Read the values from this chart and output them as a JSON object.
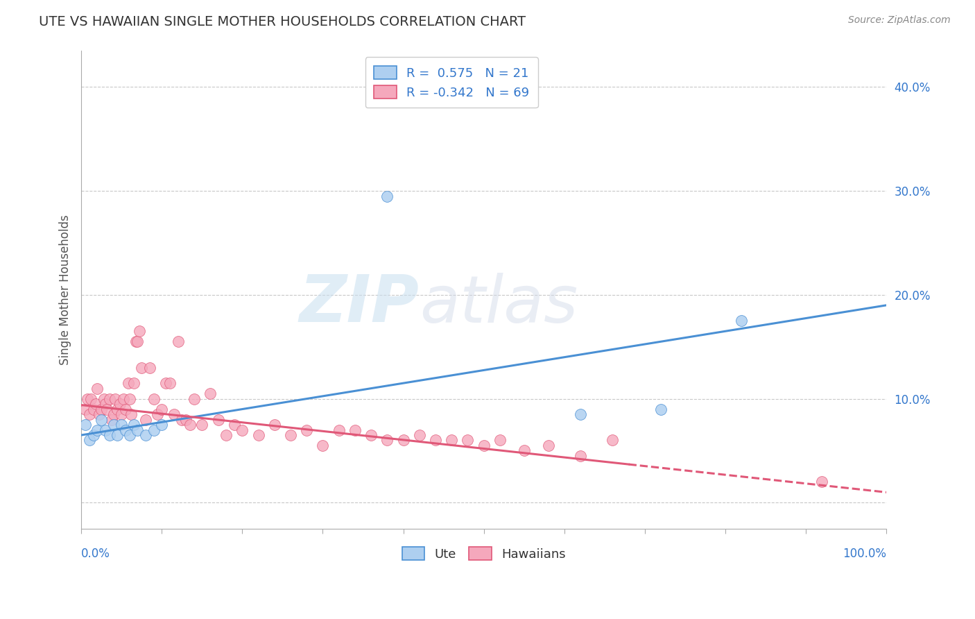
{
  "title": "UTE VS HAWAIIAN SINGLE MOTHER HOUSEHOLDS CORRELATION CHART",
  "source_text": "Source: ZipAtlas.com",
  "ylabel": "Single Mother Households",
  "ytick_vals": [
    0.0,
    0.1,
    0.2,
    0.3,
    0.4
  ],
  "xlim": [
    0.0,
    1.0
  ],
  "ylim": [
    -0.025,
    0.435
  ],
  "legend_r1": "R =  0.575   N = 21",
  "legend_r2": "R = -0.342   N = 69",
  "ute_color": "#aecff0",
  "hawaiian_color": "#f5a8bc",
  "ute_line_color": "#4a90d4",
  "hawaiian_line_color": "#e05878",
  "background_color": "#ffffff",
  "grid_color": "#c8c8c8",
  "watermark_zip": "ZIP",
  "watermark_atlas": "atlas",
  "ute_scatter_x": [
    0.005,
    0.01,
    0.015,
    0.02,
    0.025,
    0.03,
    0.035,
    0.04,
    0.045,
    0.05,
    0.055,
    0.06,
    0.065,
    0.07,
    0.08,
    0.09,
    0.1,
    0.38,
    0.62,
    0.72,
    0.82
  ],
  "ute_scatter_y": [
    0.075,
    0.06,
    0.065,
    0.07,
    0.08,
    0.07,
    0.065,
    0.075,
    0.065,
    0.075,
    0.07,
    0.065,
    0.075,
    0.07,
    0.065,
    0.07,
    0.075,
    0.295,
    0.085,
    0.09,
    0.175
  ],
  "hawaiian_scatter_x": [
    0.005,
    0.008,
    0.01,
    0.012,
    0.015,
    0.018,
    0.02,
    0.022,
    0.025,
    0.028,
    0.03,
    0.032,
    0.035,
    0.038,
    0.04,
    0.042,
    0.045,
    0.048,
    0.05,
    0.052,
    0.055,
    0.058,
    0.06,
    0.062,
    0.065,
    0.068,
    0.07,
    0.072,
    0.075,
    0.08,
    0.085,
    0.09,
    0.095,
    0.1,
    0.105,
    0.11,
    0.115,
    0.12,
    0.125,
    0.13,
    0.135,
    0.14,
    0.15,
    0.16,
    0.17,
    0.18,
    0.19,
    0.2,
    0.22,
    0.24,
    0.26,
    0.28,
    0.3,
    0.32,
    0.34,
    0.36,
    0.38,
    0.4,
    0.42,
    0.44,
    0.46,
    0.48,
    0.5,
    0.52,
    0.55,
    0.58,
    0.62,
    0.66,
    0.92
  ],
  "hawaiian_scatter_y": [
    0.09,
    0.1,
    0.085,
    0.1,
    0.09,
    0.095,
    0.11,
    0.085,
    0.09,
    0.1,
    0.095,
    0.09,
    0.1,
    0.08,
    0.085,
    0.1,
    0.09,
    0.095,
    0.085,
    0.1,
    0.09,
    0.115,
    0.1,
    0.085,
    0.115,
    0.155,
    0.155,
    0.165,
    0.13,
    0.08,
    0.13,
    0.1,
    0.085,
    0.09,
    0.115,
    0.115,
    0.085,
    0.155,
    0.08,
    0.08,
    0.075,
    0.1,
    0.075,
    0.105,
    0.08,
    0.065,
    0.075,
    0.07,
    0.065,
    0.075,
    0.065,
    0.07,
    0.055,
    0.07,
    0.07,
    0.065,
    0.06,
    0.06,
    0.065,
    0.06,
    0.06,
    0.06,
    0.055,
    0.06,
    0.05,
    0.055,
    0.045,
    0.06,
    0.02
  ],
  "ute_trend_x": [
    0.0,
    1.0
  ],
  "ute_trend_y": [
    0.065,
    0.19
  ],
  "haw_trend_x0": 0.0,
  "haw_trend_y0": 0.094,
  "haw_trend_x1": 1.0,
  "haw_trend_y1": 0.01,
  "haw_dash_cutoff": 0.68
}
